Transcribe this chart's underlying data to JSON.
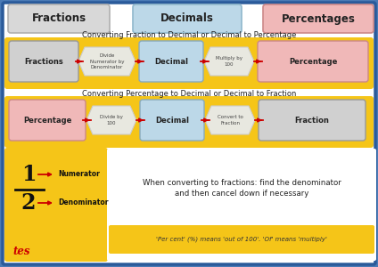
{
  "bg_color": "#4a7ab5",
  "inner_bg": "#ffffff",
  "title_fractions": "Fractions",
  "title_decimals": "Decimals",
  "title_percentages": "Percentages",
  "row1_title": "Converting Fraction to Decimal or Decimal to Percentage",
  "row2_title": "Converting Percentage to Decimal or Decimal to Fraction",
  "row1_bg": "#f5c518",
  "row2_bg": "#f5c518",
  "arrow_color": "#cc0000",
  "fraction_label_num": "1",
  "fraction_label_den": "2",
  "fraction_note1": "Numerator",
  "fraction_note2": "Denominator",
  "bottom_left_bg": "#f5c518",
  "info_text1": "When converting to fractions: find the denominator",
  "info_text2": "and then cancel down if necessary",
  "info_sub": "'Per cent' (%) means 'out of 100'. 'Of' means 'multiply'",
  "info_sub_bg": "#f5c518",
  "header_gray_color": "#d8d8d8",
  "header_gray_ec": "#b0b0b0",
  "header_blue_color": "#bcd8e8",
  "header_blue_ec": "#90b8cc",
  "header_pink_color": "#f0b8b8",
  "header_pink_ec": "#cc8888",
  "rect_gray_color": "#d0d0d0",
  "rect_blue_color": "#bcd8e8",
  "rect_pink_color": "#f0b8b8",
  "arrow_shape_color": "#e8e8e0",
  "tes_color": "#cc0000"
}
